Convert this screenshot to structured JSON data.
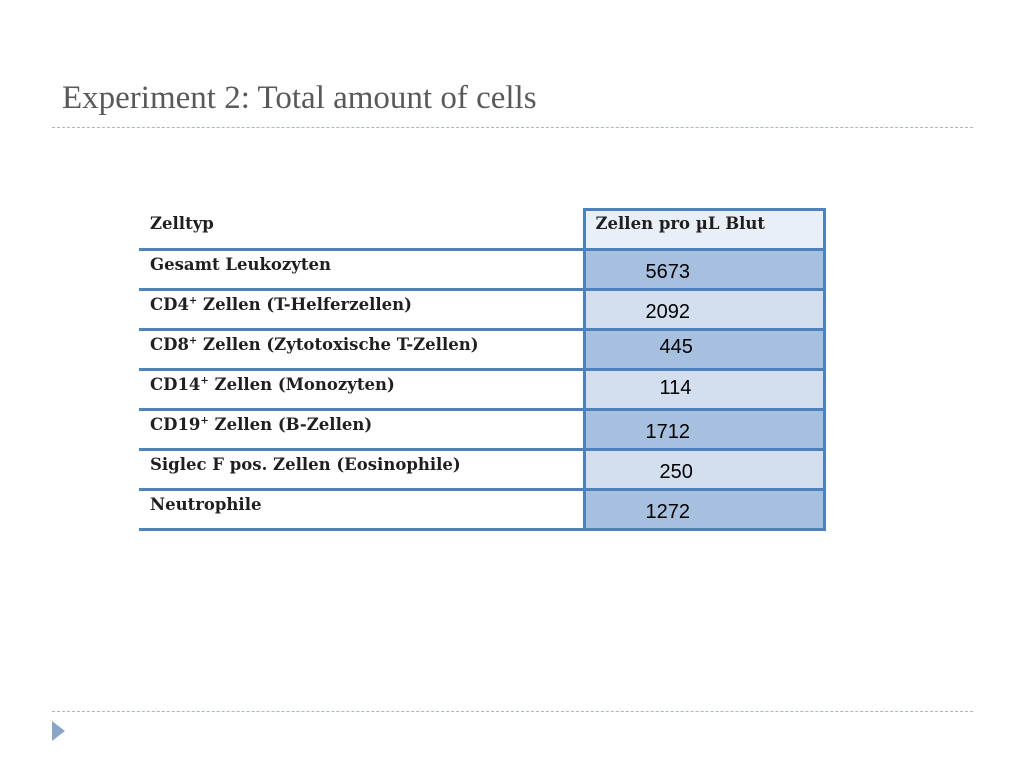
{
  "slide": {
    "title": "Experiment 2: Total amount of cells"
  },
  "table": {
    "headers": {
      "type": "Zelltyp",
      "value": "Zellen pro µL Blut"
    },
    "rows": [
      {
        "name": "Gesamt Leukozyten",
        "sup": "",
        "rest": "",
        "value": "5673"
      },
      {
        "name": "CD4",
        "sup": "+",
        "rest": " Zellen (T-Helferzellen)",
        "value": "2092"
      },
      {
        "name": "CD8",
        "sup": "+",
        "rest": " Zellen (Zytotoxische T-Zellen)",
        "value": "445"
      },
      {
        "name": "CD14",
        "sup": "+",
        "rest": " Zellen (Monozyten)",
        "value": "114"
      },
      {
        "name": "CD19",
        "sup": "+",
        "rest": " Zellen (B-Zellen)",
        "value": "1712"
      },
      {
        "name": "Siglec F pos. Zellen (Eosinophile)",
        "sup": "",
        "rest": "",
        "value": "250"
      },
      {
        "name": "Neutrophile",
        "sup": "",
        "rest": "",
        "value": "1272"
      }
    ]
  },
  "colors": {
    "border": "#4f81bd",
    "row_dark": "#a8c0e0",
    "row_light": "#d3deef",
    "header_value_bg": "#e9eff7",
    "title": "#595959"
  },
  "icons": {
    "nav": "triangle-right-icon"
  }
}
